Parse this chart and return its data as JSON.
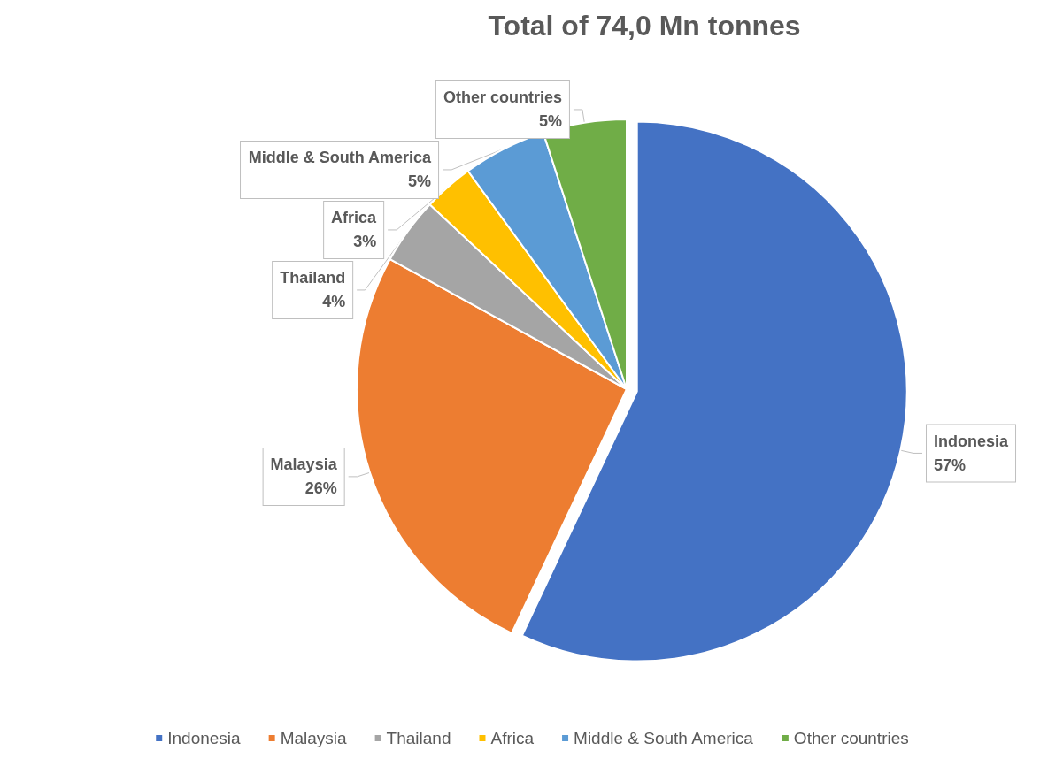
{
  "chart_data": {
    "type": "pie",
    "title": "Total of 74,0 Mn tonnes",
    "categories": [
      "Indonesia",
      "Malaysia",
      "Thailand",
      "Africa",
      "Middle & South America",
      "Other countries"
    ],
    "values": [
      57,
      26,
      4,
      3,
      5,
      5
    ],
    "value_labels": [
      "57%",
      "26%",
      "4%",
      "3%",
      "5%",
      "5%"
    ],
    "colors": [
      "#4472c4",
      "#ed7d31",
      "#a5a5a5",
      "#ffc000",
      "#5b9bd5",
      "#70ad47"
    ],
    "legend": "bottom"
  }
}
